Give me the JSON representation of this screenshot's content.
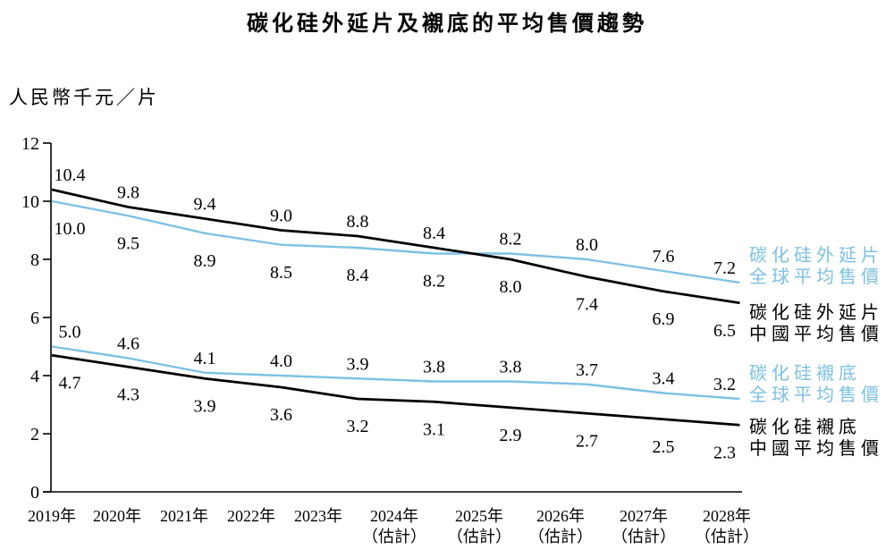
{
  "title": "碳化硅外延片及襯底的平均售價趨勢",
  "y_axis_unit": "人民幣千元／片",
  "accent_color": "#7DC1E3",
  "china_line_color": "#000000",
  "chart_data": {
    "type": "line",
    "title": "碳化硅外延片及襯底的平均售價趨勢",
    "ylabel": "人民幣千元／片",
    "ylim": [
      0,
      12
    ],
    "y_ticks": [
      0,
      2,
      4,
      6,
      8,
      10,
      12
    ],
    "grid": false,
    "legend_position": "right",
    "categories": [
      "2019年",
      "2020年",
      "2021年",
      "2022年",
      "2023年",
      "2024年",
      "2025年",
      "2026年",
      "2027年",
      "2028年"
    ],
    "category_notes": [
      "",
      "",
      "",
      "",
      "",
      "（估計）",
      "（估計）",
      "（估計）",
      "（估計）",
      "（估計）"
    ],
    "series": [
      {
        "name": "碳化硅外延片全球平均售價",
        "legend_lines": [
          "碳化硅外延片",
          "全球平均售價"
        ],
        "color_key": "accent",
        "group": "epitaxial",
        "values": [
          10.0,
          9.5,
          8.9,
          8.5,
          8.4,
          8.2,
          8.2,
          8.0,
          7.6,
          7.2
        ]
      },
      {
        "name": "碳化硅外延片中國平均售價",
        "legend_lines": [
          "碳化硅外延片",
          "中國平均售價"
        ],
        "color_key": "china",
        "group": "epitaxial",
        "values": [
          10.4,
          9.8,
          9.4,
          9.0,
          8.8,
          8.4,
          8.0,
          7.4,
          6.9,
          6.5
        ]
      },
      {
        "name": "碳化硅襯底全球平均售價",
        "legend_lines": [
          "碳化硅襯底",
          "全球平均售價"
        ],
        "color_key": "accent",
        "group": "substrate",
        "values": [
          5.0,
          4.6,
          4.1,
          4.0,
          3.9,
          3.8,
          3.8,
          3.7,
          3.4,
          3.2
        ]
      },
      {
        "name": "碳化硅襯底中國平均售價",
        "legend_lines": [
          "碳化硅襯底",
          "中國平均售價"
        ],
        "color_key": "china",
        "group": "substrate",
        "values": [
          4.7,
          4.3,
          3.9,
          3.6,
          3.2,
          3.1,
          2.9,
          2.7,
          2.5,
          2.3
        ]
      }
    ]
  }
}
